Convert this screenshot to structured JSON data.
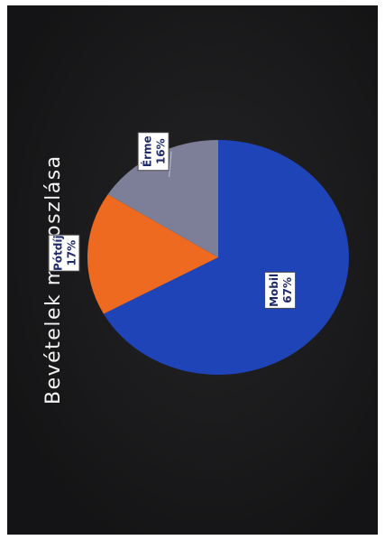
{
  "chart_data": {
    "type": "pie",
    "title": "Bevételek megoszlása",
    "categories": [
      "Mobil",
      "Érme",
      "Pótdíj"
    ],
    "values": [
      67,
      16,
      17
    ],
    "labels": [
      "67%",
      "16%",
      "17%"
    ],
    "colors": [
      "#1f44b8",
      "#7d7f99",
      "#ee6a21"
    ],
    "legend": "none",
    "grid": false
  }
}
